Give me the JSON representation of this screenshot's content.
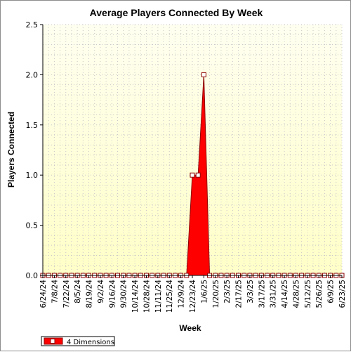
{
  "chart_data": {
    "type": "area",
    "title": "Average Players Connected By Week",
    "xlabel": "Week",
    "ylabel": "Players Connected",
    "ylim": [
      0,
      2.5
    ],
    "yticks": [
      "0.0",
      "0.5",
      "1.0",
      "1.5",
      "2.0",
      "2.5"
    ],
    "grid": true,
    "legend_position": "bottom-left",
    "colors": {
      "series_fill": "#ff0000",
      "series_edge": "#8b0000",
      "plot_bg_top": "#fffff0",
      "plot_bg_bottom": "#ffffc8",
      "grid": "#c8c8c8"
    },
    "x_tick_labels": [
      "6/24/24",
      "7/8/24",
      "7/22/24",
      "8/5/24",
      "8/19/24",
      "9/2/24",
      "9/16/24",
      "9/30/24",
      "10/14/24",
      "10/28/24",
      "11/11/24",
      "11/25/24",
      "12/9/24",
      "12/23/24",
      "1/6/25",
      "1/20/25",
      "2/3/25",
      "2/17/25",
      "3/3/25",
      "3/17/25",
      "3/31/25",
      "4/14/25",
      "4/28/25",
      "5/12/25",
      "5/26/25",
      "6/9/25",
      "6/23/25"
    ],
    "x": [
      "6/24/24",
      "7/1/24",
      "7/8/24",
      "7/15/24",
      "7/22/24",
      "7/29/24",
      "8/5/24",
      "8/12/24",
      "8/19/24",
      "8/26/24",
      "9/2/24",
      "9/9/24",
      "9/16/24",
      "9/23/24",
      "9/30/24",
      "10/7/24",
      "10/14/24",
      "10/21/24",
      "10/28/24",
      "11/4/24",
      "11/11/24",
      "11/18/24",
      "11/25/24",
      "12/2/24",
      "12/9/24",
      "12/16/24",
      "12/23/24",
      "12/30/24",
      "1/6/25",
      "1/13/25",
      "1/20/25",
      "1/27/25",
      "2/3/25",
      "2/10/25",
      "2/17/25",
      "2/24/25",
      "3/3/25",
      "3/10/25",
      "3/17/25",
      "3/24/25",
      "3/31/25",
      "4/7/25",
      "4/14/25",
      "4/21/25",
      "4/28/25",
      "5/5/25",
      "5/12/25",
      "5/19/25",
      "5/26/25",
      "6/2/25",
      "6/9/25",
      "6/16/25",
      "6/23/25"
    ],
    "series": [
      {
        "name": "4 Dimensions",
        "values": [
          0,
          0,
          0,
          0,
          0,
          0,
          0,
          0,
          0,
          0,
          0,
          0,
          0,
          0,
          0,
          0,
          0,
          0,
          0,
          0,
          0,
          0,
          0,
          0,
          0,
          0,
          1,
          1,
          2,
          0,
          0,
          0,
          0,
          0,
          0,
          0,
          0,
          0,
          0,
          0,
          0,
          0,
          0,
          0,
          0,
          0,
          0,
          0,
          0,
          0,
          0,
          0,
          0
        ]
      }
    ]
  }
}
